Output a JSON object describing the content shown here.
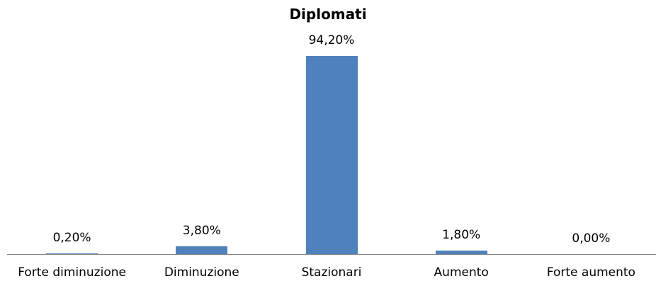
{
  "chart_data": {
    "type": "bar",
    "title": "Diplomati",
    "categories": [
      "Forte diminuzione",
      "Diminuzione",
      "Stazionari",
      "Aumento",
      "Forte aumento"
    ],
    "values": [
      0.2,
      3.8,
      94.2,
      1.8,
      0
    ],
    "value_labels": [
      "0,20%",
      "3,80%",
      "94,20%",
      "1,80%",
      "0,00%"
    ],
    "color": "#4f81bd"
  }
}
